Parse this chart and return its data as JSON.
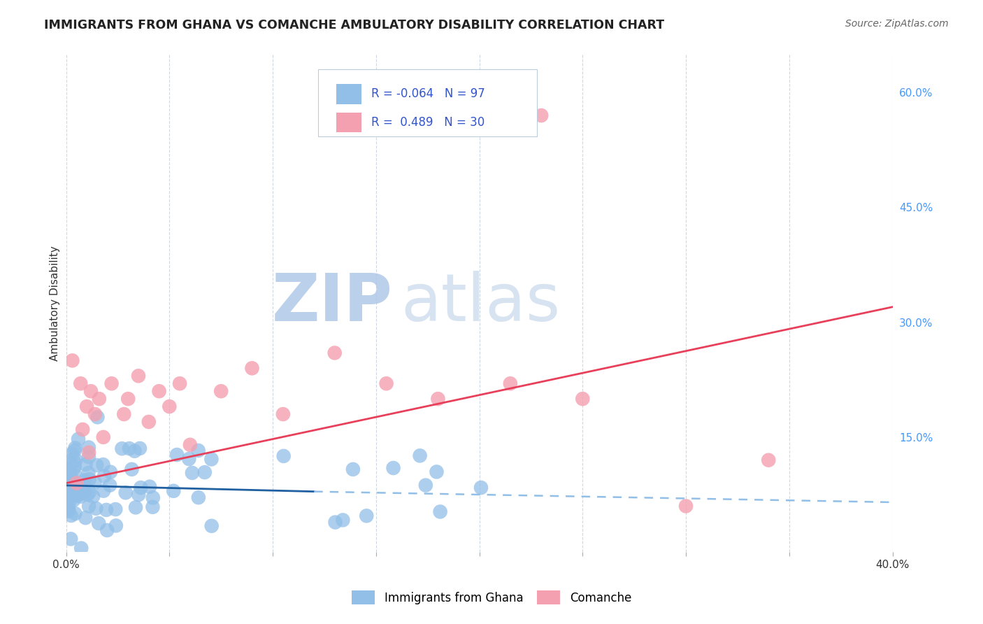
{
  "title": "IMMIGRANTS FROM GHANA VS COMANCHE AMBULATORY DISABILITY CORRELATION CHART",
  "source": "Source: ZipAtlas.com",
  "ylabel": "Ambulatory Disability",
  "xlim": [
    0.0,
    0.4
  ],
  "ylim": [
    0.0,
    0.65
  ],
  "xticks": [
    0.0,
    0.05,
    0.1,
    0.15,
    0.2,
    0.25,
    0.3,
    0.35,
    0.4
  ],
  "ytick_labels_right": [
    "60.0%",
    "45.0%",
    "30.0%",
    "15.0%"
  ],
  "ytick_positions_right": [
    0.6,
    0.45,
    0.3,
    0.15
  ],
  "legend_r1_val": "-0.064",
  "legend_n1_val": "97",
  "legend_r2_val": "0.489",
  "legend_n2_val": "30",
  "blue_color": "#92BFE8",
  "pink_color": "#F4A0B0",
  "trend_blue_solid_color": "#2060A0",
  "trend_blue_dash_color": "#92BFE8",
  "trend_pink_color": "#E8405A",
  "legend_text_color": "#3355CC",
  "right_axis_color": "#4499FF",
  "background_color": "#FFFFFF",
  "grid_color": "#C8D4E0",
  "watermark_zip_color": "#B0C8E8",
  "watermark_atlas_color": "#C8D8EC",
  "pink_line_x0": 0.0,
  "pink_line_y0": 0.09,
  "pink_line_x1": 0.4,
  "pink_line_y1": 0.32,
  "blue_line_x0": 0.0,
  "blue_line_y0": 0.087,
  "blue_line_solid_x1": 0.12,
  "blue_line_dashed_x1": 0.4,
  "blue_line_y_at_solid_end": 0.079,
  "blue_line_y1": 0.065,
  "blue_seed": 42,
  "pink_seed": 99
}
